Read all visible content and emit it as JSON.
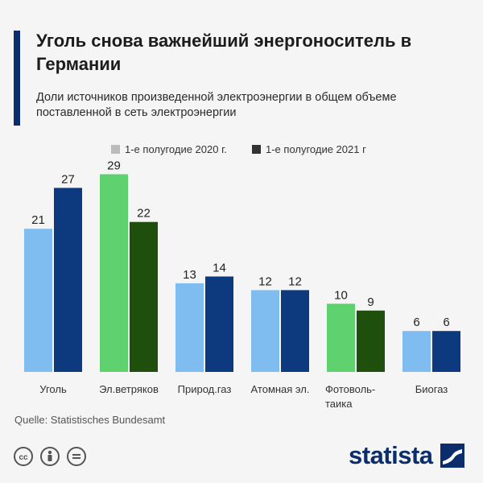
{
  "header": {
    "title": "Уголь снова важнейший энергоноситель в Германии",
    "subtitle": "Доли  источников произведенной электроэнергии в общем объеме поставленной в сеть электроэнергии"
  },
  "colors": {
    "accent": "#0b2d6b",
    "light_blue": "#7fbdf0",
    "dark_blue": "#0d3a7e",
    "light_green": "#5fd16f",
    "dark_green": "#1f4f0c",
    "legend_light": "#bbbbbb",
    "legend_dark": "#333333"
  },
  "chart_data": {
    "type": "bar",
    "title": "Уголь снова важнейший энергоноситель в Германии",
    "subtitle": "Доли  источников произведенной электроэнергии в общем объеме поставленной в сеть электроэнергии",
    "categories": [
      "Уголь",
      "Эл.ветряков",
      "Природ.газ",
      "Атомная эл.",
      "Фотоволь-таика",
      "Биогаз"
    ],
    "category_lines": [
      [
        "Уголь"
      ],
      [
        "Эл.ветряков"
      ],
      [
        "Природ.газ"
      ],
      [
        "Атомная эл."
      ],
      [
        "Фотоволь-",
        "таика"
      ],
      [
        "Биогаз"
      ]
    ],
    "series": [
      {
        "name": "1-е полугодие 2020 г.",
        "values": [
          21,
          29,
          13,
          12,
          10,
          6
        ]
      },
      {
        "name": "1-е полугодие 2021 г",
        "values": [
          27,
          22,
          14,
          12,
          9,
          6
        ]
      }
    ],
    "bar_colors": [
      [
        "#7fbdf0",
        "#0d3a7e"
      ],
      [
        "#5fd16f",
        "#1f4f0c"
      ],
      [
        "#7fbdf0",
        "#0d3a7e"
      ],
      [
        "#7fbdf0",
        "#0d3a7e"
      ],
      [
        "#5fd16f",
        "#1f4f0c"
      ],
      [
        "#7fbdf0",
        "#0d3a7e"
      ]
    ],
    "legend_placement": "top-center",
    "ylim": [
      0,
      30
    ],
    "grid": false,
    "data_labels": true
  },
  "footer": {
    "source": "Quelle: Statistisches Bundesamt",
    "logo": "statista",
    "license_icons": [
      "cc-icon",
      "by-icon",
      "nd-icon"
    ]
  }
}
